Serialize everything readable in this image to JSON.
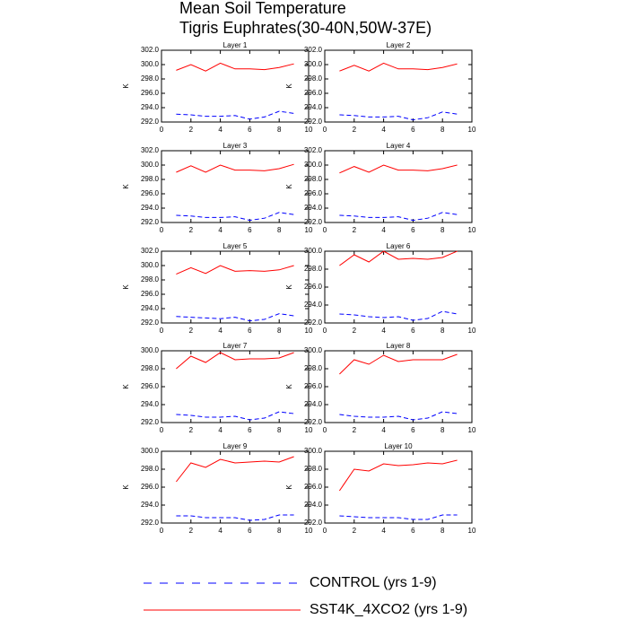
{
  "title": [
    "Mean Soil Temperature",
    "Tigris Euphrates(30-40N,50W-37E)"
  ],
  "legend": [
    {
      "name": "CONTROL (yrs 1-9)"
    },
    {
      "name": "SST4K_4XCO2 (yrs 1-9)"
    }
  ],
  "chart_data": [
    {
      "type": "line",
      "title": "Layer 1",
      "ylabel": "K",
      "x": [
        1,
        2,
        3,
        4,
        5,
        6,
        7,
        8,
        9
      ],
      "xlim": [
        0,
        10
      ],
      "xticks": [
        0,
        2,
        4,
        6,
        8,
        10
      ],
      "ylim": [
        292,
        302
      ],
      "yticks": [
        {
          "value": 292,
          "label": "292.0"
        },
        {
          "value": 294,
          "label": "294.0"
        },
        {
          "value": 296,
          "label": "296.0"
        },
        {
          "value": 298,
          "label": "298.0"
        },
        {
          "value": 300,
          "label": "300.0"
        },
        {
          "value": 302,
          "label": "302.0"
        }
      ],
      "series": [
        {
          "color": "#0000ff",
          "dashed": true,
          "values": [
            293.1,
            293.0,
            292.8,
            292.8,
            292.9,
            292.4,
            292.7,
            293.5,
            293.2
          ]
        },
        {
          "color": "#ff0000",
          "dashed": false,
          "values": [
            299.2,
            300.0,
            299.1,
            300.2,
            299.4,
            299.4,
            299.3,
            299.6,
            300.1
          ]
        }
      ]
    },
    {
      "type": "line",
      "title": "Layer 2",
      "ylabel": "K",
      "x": [
        1,
        2,
        3,
        4,
        5,
        6,
        7,
        8,
        9
      ],
      "xlim": [
        0,
        10
      ],
      "xticks": [
        0,
        2,
        4,
        6,
        8,
        10
      ],
      "ylim": [
        292,
        302
      ],
      "yticks": [
        {
          "value": 292,
          "label": "292.0"
        },
        {
          "value": 294,
          "label": "294.0"
        },
        {
          "value": 296,
          "label": "296.0"
        },
        {
          "value": 298,
          "label": "298.0"
        },
        {
          "value": 300,
          "label": "300.0"
        },
        {
          "value": 302,
          "label": "302.0"
        }
      ],
      "series": [
        {
          "color": "#0000ff",
          "dashed": true,
          "values": [
            293.0,
            292.9,
            292.7,
            292.7,
            292.8,
            292.3,
            292.6,
            293.4,
            293.1
          ]
        },
        {
          "color": "#ff0000",
          "dashed": false,
          "values": [
            299.1,
            299.9,
            299.1,
            300.2,
            299.4,
            299.4,
            299.3,
            299.6,
            300.1
          ]
        }
      ]
    },
    {
      "type": "line",
      "title": "Layer 3",
      "ylabel": "K",
      "x": [
        1,
        2,
        3,
        4,
        5,
        6,
        7,
        8,
        9
      ],
      "xlim": [
        0,
        10
      ],
      "xticks": [
        0,
        2,
        4,
        6,
        8,
        10
      ],
      "ylim": [
        292,
        302
      ],
      "yticks": [
        {
          "value": 292,
          "label": "292.0"
        },
        {
          "value": 294,
          "label": "294.0"
        },
        {
          "value": 296,
          "label": "296.0"
        },
        {
          "value": 298,
          "label": "298.0"
        },
        {
          "value": 300,
          "label": "300.0"
        },
        {
          "value": 302,
          "label": "302.0"
        }
      ],
      "series": [
        {
          "color": "#0000ff",
          "dashed": true,
          "values": [
            293.0,
            292.9,
            292.7,
            292.7,
            292.8,
            292.3,
            292.6,
            293.4,
            293.1
          ]
        },
        {
          "color": "#ff0000",
          "dashed": false,
          "values": [
            299.0,
            299.9,
            299.0,
            300.0,
            299.3,
            299.3,
            299.2,
            299.5,
            300.1
          ]
        }
      ]
    },
    {
      "type": "line",
      "title": "Layer 4",
      "ylabel": "K",
      "x": [
        1,
        2,
        3,
        4,
        5,
        6,
        7,
        8,
        9
      ],
      "xlim": [
        0,
        10
      ],
      "xticks": [
        0,
        2,
        4,
        6,
        8,
        10
      ],
      "ylim": [
        292,
        302
      ],
      "yticks": [
        {
          "value": 292,
          "label": "292.0"
        },
        {
          "value": 294,
          "label": "294.0"
        },
        {
          "value": 296,
          "label": "296.0"
        },
        {
          "value": 298,
          "label": "298.0"
        },
        {
          "value": 300,
          "label": "300.0"
        },
        {
          "value": 302,
          "label": "302.0"
        }
      ],
      "series": [
        {
          "color": "#0000ff",
          "dashed": true,
          "values": [
            293.0,
            292.9,
            292.7,
            292.7,
            292.8,
            292.3,
            292.6,
            293.4,
            293.1
          ]
        },
        {
          "color": "#ff0000",
          "dashed": false,
          "values": [
            298.9,
            299.8,
            299.0,
            300.0,
            299.3,
            299.3,
            299.2,
            299.5,
            300.0
          ]
        }
      ]
    },
    {
      "type": "line",
      "title": "Layer 5",
      "ylabel": "K",
      "x": [
        1,
        2,
        3,
        4,
        5,
        6,
        7,
        8,
        9
      ],
      "xlim": [
        0,
        10
      ],
      "xticks": [
        0,
        2,
        4,
        6,
        8,
        10
      ],
      "ylim": [
        292,
        302
      ],
      "yticks": [
        {
          "value": 292,
          "label": "292.0"
        },
        {
          "value": 294,
          "label": "294.0"
        },
        {
          "value": 296,
          "label": "296.0"
        },
        {
          "value": 298,
          "label": "298.0"
        },
        {
          "value": 300,
          "label": "300.0"
        },
        {
          "value": 302,
          "label": "302.0"
        }
      ],
      "series": [
        {
          "color": "#0000ff",
          "dashed": true,
          "values": [
            292.9,
            292.8,
            292.7,
            292.6,
            292.8,
            292.3,
            292.5,
            293.3,
            293.0
          ]
        },
        {
          "color": "#ff0000",
          "dashed": false,
          "values": [
            298.8,
            299.7,
            298.9,
            300.0,
            299.2,
            299.3,
            299.2,
            299.4,
            300.0
          ]
        }
      ]
    },
    {
      "type": "line",
      "title": "Layer 6",
      "ylabel": "K",
      "x": [
        1,
        2,
        3,
        4,
        5,
        6,
        7,
        8,
        9
      ],
      "xlim": [
        0,
        10
      ],
      "xticks": [
        0,
        2,
        4,
        6,
        8,
        10
      ],
      "ylim": [
        292,
        300
      ],
      "yticks": [
        {
          "value": 292,
          "label": "292.0"
        },
        {
          "value": 294,
          "label": "294.0"
        },
        {
          "value": 296,
          "label": "296.0"
        },
        {
          "value": 298,
          "label": "298.0"
        },
        {
          "value": 300,
          "label": "300.0"
        }
      ],
      "series": [
        {
          "color": "#0000ff",
          "dashed": true,
          "values": [
            293.0,
            292.9,
            292.7,
            292.6,
            292.7,
            292.3,
            292.5,
            293.3,
            293.0
          ]
        },
        {
          "color": "#ff0000",
          "dashed": false,
          "values": [
            298.4,
            299.6,
            298.8,
            300.0,
            299.1,
            299.2,
            299.1,
            299.3,
            300.0
          ]
        }
      ]
    },
    {
      "type": "line",
      "title": "Layer 7",
      "ylabel": "K",
      "x": [
        1,
        2,
        3,
        4,
        5,
        6,
        7,
        8,
        9
      ],
      "xlim": [
        0,
        10
      ],
      "xticks": [
        0,
        2,
        4,
        6,
        8,
        10
      ],
      "ylim": [
        292,
        300
      ],
      "yticks": [
        {
          "value": 292,
          "label": "292.0"
        },
        {
          "value": 294,
          "label": "294.0"
        },
        {
          "value": 296,
          "label": "296.0"
        },
        {
          "value": 298,
          "label": "298.0"
        },
        {
          "value": 300,
          "label": "300.0"
        }
      ],
      "series": [
        {
          "color": "#0000ff",
          "dashed": true,
          "values": [
            292.9,
            292.8,
            292.6,
            292.6,
            292.7,
            292.3,
            292.5,
            293.2,
            293.0
          ]
        },
        {
          "color": "#ff0000",
          "dashed": false,
          "values": [
            298.0,
            299.4,
            298.7,
            299.8,
            299.0,
            299.1,
            299.1,
            299.2,
            299.8
          ]
        }
      ]
    },
    {
      "type": "line",
      "title": "Layer 8",
      "ylabel": "K",
      "x": [
        1,
        2,
        3,
        4,
        5,
        6,
        7,
        8,
        9
      ],
      "xlim": [
        0,
        10
      ],
      "xticks": [
        0,
        2,
        4,
        6,
        8,
        10
      ],
      "ylim": [
        292,
        300
      ],
      "yticks": [
        {
          "value": 292,
          "label": "292.0"
        },
        {
          "value": 294,
          "label": "294.0"
        },
        {
          "value": 296,
          "label": "296.0"
        },
        {
          "value": 298,
          "label": "298.0"
        },
        {
          "value": 300,
          "label": "300.0"
        }
      ],
      "series": [
        {
          "color": "#0000ff",
          "dashed": true,
          "values": [
            292.9,
            292.7,
            292.6,
            292.6,
            292.7,
            292.3,
            292.5,
            293.2,
            293.0
          ]
        },
        {
          "color": "#ff0000",
          "dashed": false,
          "values": [
            297.4,
            299.0,
            298.5,
            299.5,
            298.8,
            299.0,
            299.0,
            299.0,
            299.6
          ]
        }
      ]
    },
    {
      "type": "line",
      "title": "Layer 9",
      "ylabel": "K",
      "x": [
        1,
        2,
        3,
        4,
        5,
        6,
        7,
        8,
        9
      ],
      "xlim": [
        0,
        10
      ],
      "xticks": [
        0,
        2,
        4,
        6,
        8,
        10
      ],
      "ylim": [
        292,
        300
      ],
      "yticks": [
        {
          "value": 292,
          "label": "292.0"
        },
        {
          "value": 294,
          "label": "294.0"
        },
        {
          "value": 296,
          "label": "296.0"
        },
        {
          "value": 298,
          "label": "298.0"
        },
        {
          "value": 300,
          "label": "300.0"
        }
      ],
      "series": [
        {
          "color": "#0000ff",
          "dashed": true,
          "values": [
            292.8,
            292.8,
            292.6,
            292.6,
            292.6,
            292.3,
            292.4,
            292.9,
            292.9
          ]
        },
        {
          "color": "#ff0000",
          "dashed": false,
          "values": [
            296.6,
            298.7,
            298.2,
            299.1,
            298.7,
            298.8,
            298.9,
            298.8,
            299.4
          ]
        }
      ]
    },
    {
      "type": "line",
      "title": "Layer 10",
      "ylabel": "K",
      "x": [
        1,
        2,
        3,
        4,
        5,
        6,
        7,
        8,
        9
      ],
      "xlim": [
        0,
        10
      ],
      "xticks": [
        0,
        2,
        4,
        6,
        8,
        10
      ],
      "ylim": [
        292,
        300
      ],
      "yticks": [
        {
          "value": 292,
          "label": "292.0"
        },
        {
          "value": 294,
          "label": "294.0"
        },
        {
          "value": 296,
          "label": "296.0"
        },
        {
          "value": 298,
          "label": "298.0"
        },
        {
          "value": 300,
          "label": "300.0"
        }
      ],
      "series": [
        {
          "color": "#0000ff",
          "dashed": true,
          "values": [
            292.8,
            292.7,
            292.6,
            292.6,
            292.6,
            292.4,
            292.4,
            292.9,
            292.9
          ]
        },
        {
          "color": "#ff0000",
          "dashed": false,
          "values": [
            295.6,
            298.0,
            297.8,
            298.6,
            298.4,
            298.5,
            298.7,
            298.6,
            299.0
          ]
        }
      ]
    }
  ]
}
